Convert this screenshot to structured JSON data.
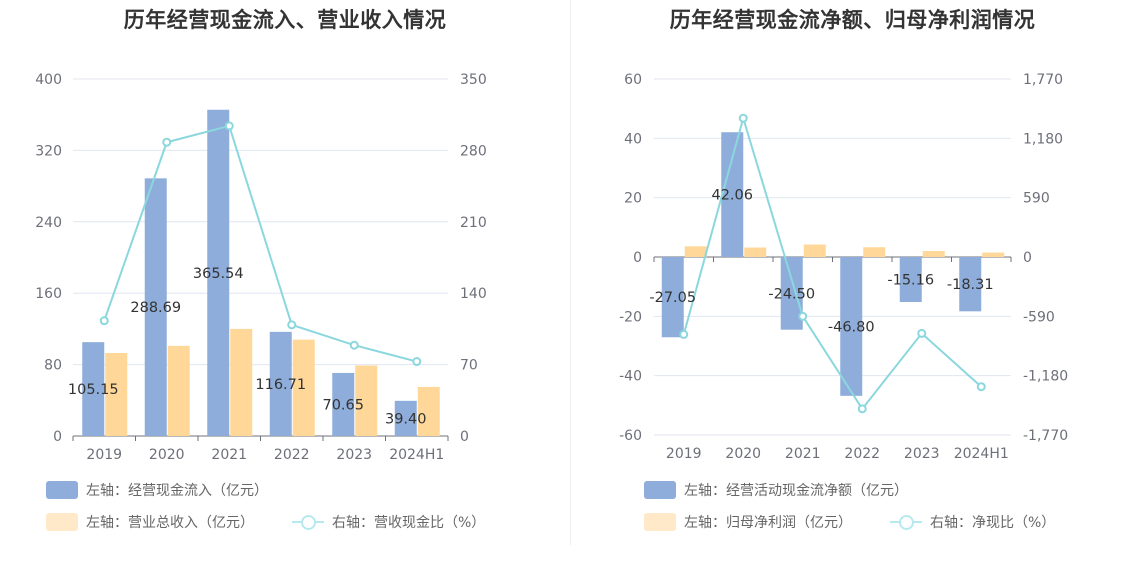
{
  "colors": {
    "bar_primary": "#8eaddb",
    "bar_secondary": "#ffd899",
    "line": "#8bd7de",
    "legend_primary": "#8eaddb",
    "legend_secondary": "#ffe9c8",
    "legend_line": "#b6e9ef"
  },
  "charts": [
    {
      "title": "历年经营现金流入、营业收入情况",
      "legend": {
        "bar1": "左轴：经营现金流入（亿元）",
        "bar2": "左轴：营业总收入（亿元）",
        "line": "右轴：营收现金比（%）"
      }
    },
    {
      "title": "历年经营现金流净额、归母净利润情况",
      "legend": {
        "bar1": "左轴：经营活动现金流净额（亿元）",
        "bar2": "左轴：归母净利润（亿元）",
        "line": "右轴：净现比（%）"
      }
    }
  ],
  "chart_data": [
    {
      "type": "bar",
      "title": "历年经营现金流入、营业收入情况",
      "categories": [
        "2019",
        "2020",
        "2021",
        "2022",
        "2023",
        "2024H1"
      ],
      "left_axis": {
        "ticks": [
          "0",
          "80",
          "160",
          "240",
          "320",
          "400"
        ],
        "ylim": [
          0,
          400
        ]
      },
      "right_axis": {
        "ticks": [
          "0",
          "70",
          "140",
          "210",
          "280",
          "350"
        ],
        "ylim": [
          0,
          350
        ]
      },
      "series": [
        {
          "name": "左轴：经营现金流入（亿元）",
          "axis": "left",
          "values": [
            105.15,
            288.69,
            365.54,
            116.71,
            70.65,
            39.4
          ],
          "labels": [
            "105.15",
            "288.69",
            "365.54",
            "116.71",
            "70.65",
            "39.40"
          ]
        },
        {
          "name": "左轴：营业总收入（亿元）",
          "axis": "left",
          "values": [
            93,
            101,
            120,
            108,
            79,
            55
          ]
        },
        {
          "name": "右轴：营收现金比（%）",
          "axis": "right",
          "type": "line",
          "values": [
            113,
            288,
            304,
            109,
            89,
            73
          ]
        }
      ],
      "grid": true
    },
    {
      "type": "bar",
      "title": "历年经营现金流净额、归母净利润情况",
      "categories": [
        "2019",
        "2020",
        "2021",
        "2022",
        "2023",
        "2024H1"
      ],
      "left_axis": {
        "ticks": [
          "-60",
          "-40",
          "-20",
          "0",
          "20",
          "40",
          "60"
        ],
        "ylim": [
          -60,
          60
        ]
      },
      "right_axis": {
        "ticks": [
          "-1,770",
          "-1,180",
          "-590",
          "0",
          "590",
          "1,180",
          "1,770"
        ],
        "ylim": [
          -1770,
          1770
        ]
      },
      "series": [
        {
          "name": "左轴：经营活动现金流净额（亿元）",
          "axis": "left",
          "values": [
            -27.05,
            42.06,
            -24.5,
            -46.8,
            -15.16,
            -18.31
          ],
          "labels": [
            "-27.05",
            "42.06",
            "-24.50",
            "-46.80",
            "-15.16",
            "-18.31"
          ]
        },
        {
          "name": "左轴：归母净利润（亿元）",
          "axis": "left",
          "values": [
            3.6,
            3.2,
            4.2,
            3.3,
            2.0,
            1.5
          ]
        },
        {
          "name": "右轴：净现比（%）",
          "axis": "right",
          "type": "line",
          "values": [
            -770,
            1380,
            -590,
            -1510,
            -760,
            -1290
          ]
        }
      ],
      "grid": true
    }
  ]
}
